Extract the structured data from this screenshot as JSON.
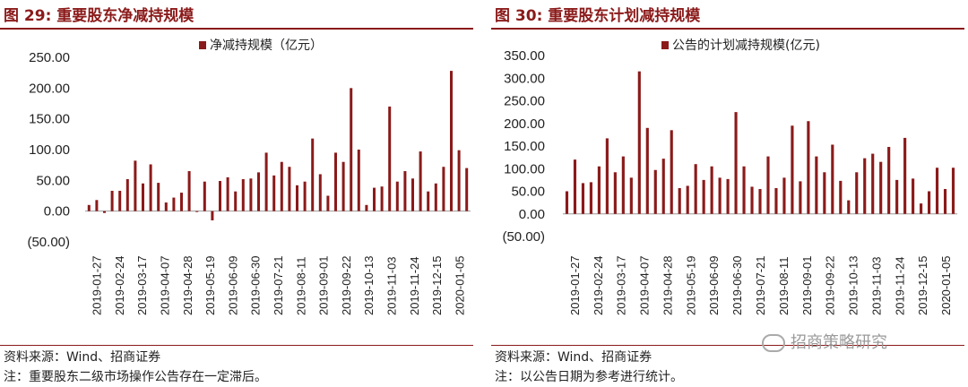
{
  "left": {
    "title": "图 29:  重要股东净减持规模",
    "source": "资料来源：Wind、招商证券",
    "note": "注：重要股东二级市场操作公告存在一定滞后。"
  },
  "right": {
    "title": "图 30:  重要股东计划减持规模",
    "source": "资料来源：Wind、招商证券",
    "note": "注：以公告日期为参考进行统计。"
  },
  "watermark": "招商策略研究",
  "chart_data": [
    {
      "type": "bar",
      "title": "",
      "legend": [
        "净减持规模（亿元）"
      ],
      "legend_position": "top",
      "ylim": [
        -50,
        250
      ],
      "yticks": [
        -50,
        0,
        50,
        100,
        150,
        200,
        250
      ],
      "ytick_labels": [
        "(50.00)",
        "0.00",
        "50.00",
        "100.00",
        "150.00",
        "200.00",
        "250.00"
      ],
      "grid": false,
      "color": "#8b1a1a",
      "x_labels": [
        "2019-01-27",
        "2019-02-24",
        "2019-03-17",
        "2019-04-07",
        "2019-04-28",
        "2019-05-19",
        "2019-06-09",
        "2019-06-30",
        "2019-07-21",
        "2019-08-11",
        "2019-09-01",
        "2019-09-22",
        "2019-10-13",
        "2019-11-03",
        "2019-11-24",
        "2019-12-15",
        "2020-01-05"
      ],
      "values": [
        10,
        18,
        -3,
        33,
        33,
        52,
        82,
        45,
        76,
        46,
        14,
        22,
        30,
        65,
        0,
        48,
        -15,
        49,
        55,
        32,
        52,
        53,
        63,
        95,
        58,
        80,
        72,
        42,
        48,
        118,
        60,
        25,
        95,
        80,
        200,
        100,
        10,
        38,
        40,
        170,
        48,
        65,
        53,
        97,
        32,
        45,
        72,
        228,
        99,
        70
      ]
    },
    {
      "type": "bar",
      "title": "",
      "legend": [
        "公告的计划减持规模(亿元)"
      ],
      "legend_position": "top",
      "ylim": [
        -50,
        350
      ],
      "yticks": [
        -50,
        0,
        50,
        100,
        150,
        200,
        250,
        300,
        350
      ],
      "ytick_labels": [
        "(50.00)",
        "0.00",
        "50.00",
        "100.00",
        "150.00",
        "200.00",
        "250.00",
        "300.00",
        "350.00"
      ],
      "grid": false,
      "color": "#8b1a1a",
      "x_labels": [
        "2019-01-27",
        "2019-02-24",
        "2019-03-17",
        "2019-04-07",
        "2019-04-28",
        "2019-05-19",
        "2019-06-09",
        "2019-06-30",
        "2019-07-21",
        "2019-08-11",
        "2019-09-01",
        "2019-09-22",
        "2019-10-13",
        "2019-11-03",
        "2019-11-24",
        "2019-12-15",
        "2020-01-05"
      ],
      "values": [
        50,
        120,
        68,
        70,
        105,
        167,
        92,
        127,
        80,
        315,
        190,
        97,
        122,
        185,
        57,
        62,
        110,
        75,
        105,
        80,
        77,
        225,
        105,
        60,
        55,
        127,
        57,
        80,
        195,
        72,
        205,
        127,
        92,
        153,
        73,
        30,
        92,
        123,
        133,
        115,
        148,
        75,
        168,
        78,
        23,
        50,
        102,
        55,
        102
      ]
    }
  ]
}
